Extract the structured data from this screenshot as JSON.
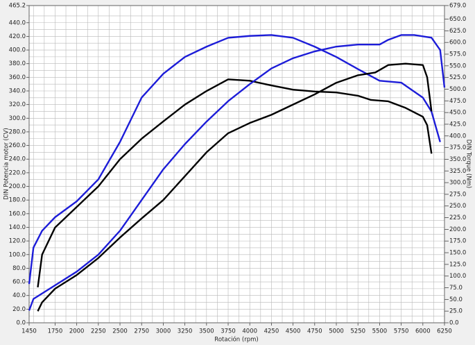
{
  "chart_data": {
    "type": "line",
    "xlabel": "Rotación (rpm)",
    "ylabel": "DIN Potencia motor (CV)",
    "y2label": "DIN Torque (Nm)",
    "xlim": [
      1450,
      6250
    ],
    "xticks": [
      1450,
      1750,
      2000,
      2250,
      2500,
      2750,
      3000,
      3250,
      3500,
      3750,
      4000,
      4250,
      4500,
      4750,
      5000,
      5250,
      5500,
      5750,
      6000,
      6250
    ],
    "minor_xticks": [
      1500,
      1625,
      1875,
      2125,
      2375,
      2625,
      2875,
      3125,
      3375,
      3625,
      3875,
      4125,
      4375,
      4625,
      4875,
      5125,
      5375,
      5625,
      5875,
      6125
    ],
    "ylim": [
      0,
      465.2
    ],
    "yticks": [
      {
        "value": 0,
        "label": "0.0"
      },
      {
        "value": 20,
        "label": "20.0"
      },
      {
        "value": 40,
        "label": "40.0"
      },
      {
        "value": 60,
        "label": "60.0"
      },
      {
        "value": 80,
        "label": "80.0"
      },
      {
        "value": 100,
        "label": "100.0"
      },
      {
        "value": 120,
        "label": "120.0"
      },
      {
        "value": 140,
        "label": "140.0"
      },
      {
        "value": 160,
        "label": "160.0"
      },
      {
        "value": 180,
        "label": "180.0"
      },
      {
        "value": 200,
        "label": "200.0"
      },
      {
        "value": 220,
        "label": "220.0"
      },
      {
        "value": 240,
        "label": "240.0"
      },
      {
        "value": 260,
        "label": "260.0"
      },
      {
        "value": 280,
        "label": "280.0"
      },
      {
        "value": 300,
        "label": "300.0"
      },
      {
        "value": 320,
        "label": "320.0"
      },
      {
        "value": 340,
        "label": "340.0"
      },
      {
        "value": 360,
        "label": "360.0"
      },
      {
        "value": 380,
        "label": "380.0"
      },
      {
        "value": 400,
        "label": "400.0"
      },
      {
        "value": 420,
        "label": "420.0"
      },
      {
        "value": 440,
        "label": "440.0"
      },
      {
        "value": 465.2,
        "label": "465.2"
      }
    ],
    "minor_yticks": [
      10,
      30,
      50,
      70,
      90,
      110,
      130,
      150,
      170,
      190,
      210,
      230,
      250,
      270,
      290,
      310,
      330,
      350,
      370,
      390,
      410,
      430,
      450
    ],
    "y2lim": [
      0,
      679.0
    ],
    "y2ticks": [
      {
        "value": 0,
        "label": "0.0"
      },
      {
        "value": 25,
        "label": "25.0"
      },
      {
        "value": 50,
        "label": "50.0"
      },
      {
        "value": 75,
        "label": "75.0"
      },
      {
        "value": 100,
        "label": "100.0"
      },
      {
        "value": 125,
        "label": "125.0"
      },
      {
        "value": 150,
        "label": "150.0"
      },
      {
        "value": 175,
        "label": "175.0"
      },
      {
        "value": 200,
        "label": "200.0"
      },
      {
        "value": 225,
        "label": "225.0"
      },
      {
        "value": 250,
        "label": "250.0"
      },
      {
        "value": 275,
        "label": "275.0"
      },
      {
        "value": 300,
        "label": "300.0"
      },
      {
        "value": 325,
        "label": "325.0"
      },
      {
        "value": 350,
        "label": "350.0"
      },
      {
        "value": 375,
        "label": "375.0"
      },
      {
        "value": 400,
        "label": "400.0"
      },
      {
        "value": 425,
        "label": "425.0"
      },
      {
        "value": 450,
        "label": "450.0"
      },
      {
        "value": 475,
        "label": "475.0"
      },
      {
        "value": 500,
        "label": "500.0"
      },
      {
        "value": 525,
        "label": "525.0"
      },
      {
        "value": 550,
        "label": "550.0"
      },
      {
        "value": 575,
        "label": "575.0"
      },
      {
        "value": 600,
        "label": "600.0"
      },
      {
        "value": 625,
        "label": "625.0"
      },
      {
        "value": 650,
        "label": "650.0"
      },
      {
        "value": 679.0,
        "label": "679.0"
      }
    ],
    "grid": true,
    "series": [
      {
        "color": "#1c1cd8",
        "axis": "y2",
        "x": [
          1450,
          1500,
          1600,
          1750,
          2000,
          2250,
          2500,
          2750,
          3000,
          3250,
          3500,
          3750,
          4000,
          4250,
          4500,
          4750,
          5000,
          5250,
          5500,
          5750,
          6000,
          6100,
          6200
        ],
        "values": [
          83,
          161,
          197,
          226,
          260,
          307,
          387,
          482,
          533,
          569,
          591,
          610,
          614,
          616,
          610,
          591,
          569,
          543,
          518,
          514,
          482,
          452,
          387
        ]
      },
      {
        "color": "#000000",
        "axis": "y2",
        "x": [
          1550,
          1600,
          1750,
          2000,
          2250,
          2500,
          2750,
          3000,
          3250,
          3500,
          3750,
          4000,
          4250,
          4500,
          4750,
          5000,
          5250,
          5400,
          5600,
          5800,
          6000,
          6050,
          6100
        ],
        "values": [
          76,
          146,
          204,
          248,
          292,
          350,
          394,
          431,
          467,
          496,
          521,
          518,
          508,
          499,
          495,
          493,
          486,
          477,
          474,
          460,
          441,
          423,
          362
        ]
      },
      {
        "color": "#1c1cd8",
        "x": [
          1450,
          1500,
          1750,
          2000,
          2250,
          2500,
          2750,
          3000,
          3250,
          3500,
          3750,
          4000,
          4250,
          4500,
          4750,
          5000,
          5250,
          5500,
          5600,
          5750,
          5900,
          6100,
          6200,
          6250
        ],
        "values": [
          18,
          35,
          55,
          75,
          100,
          135,
          180,
          225,
          262,
          295,
          325,
          350,
          373,
          388,
          398,
          405,
          408,
          408,
          415,
          422,
          422,
          418,
          400,
          345
        ]
      },
      {
        "color": "#000000",
        "x": [
          1550,
          1600,
          1750,
          2000,
          2250,
          2500,
          2750,
          3000,
          3250,
          3500,
          3750,
          4000,
          4250,
          4500,
          4750,
          5000,
          5250,
          5450,
          5600,
          5800,
          6000,
          6050,
          6100
        ],
        "values": [
          17,
          30,
          50,
          70,
          95,
          125,
          153,
          180,
          215,
          250,
          278,
          293,
          305,
          320,
          335,
          352,
          363,
          367,
          378,
          380,
          378,
          360,
          310
        ]
      }
    ]
  }
}
